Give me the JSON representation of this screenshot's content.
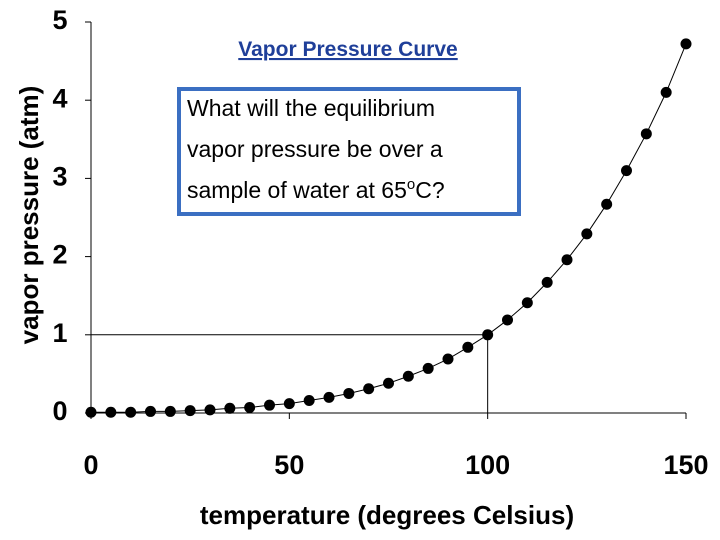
{
  "chart_data": {
    "type": "line",
    "title": "Vapor Pressure Curve",
    "x_label": "temperature (degrees Celsius)",
    "y_label": "vapor pressure (atm)",
    "annotation": {
      "lines": [
        "What will the equilibrium",
        "vapor pressure be over a"
      ],
      "last_line": [
        "sample of water at 65",
        "o",
        "C?"
      ]
    },
    "x": [
      0,
      5,
      10,
      15,
      20,
      25,
      30,
      35,
      40,
      45,
      50,
      55,
      60,
      65,
      70,
      75,
      80,
      85,
      90,
      95,
      100,
      105,
      110,
      115,
      120,
      125,
      130,
      135,
      140,
      145,
      150
    ],
    "values": [
      0.01,
      0.01,
      0.01,
      0.02,
      0.02,
      0.03,
      0.04,
      0.06,
      0.07,
      0.1,
      0.12,
      0.16,
      0.2,
      0.25,
      0.31,
      0.38,
      0.47,
      0.57,
      0.69,
      0.84,
      1.0,
      1.19,
      1.41,
      1.67,
      1.96,
      2.29,
      2.67,
      3.1,
      3.57,
      4.1,
      4.72
    ],
    "color": "#000000",
    "xlim": [
      0,
      150
    ],
    "ylim": [
      0,
      5
    ],
    "xticks": [
      0,
      50,
      100,
      150
    ],
    "yticks": [
      0,
      1,
      2,
      3,
      4,
      5
    ],
    "guide": {
      "x": 100,
      "y": 1
    }
  }
}
